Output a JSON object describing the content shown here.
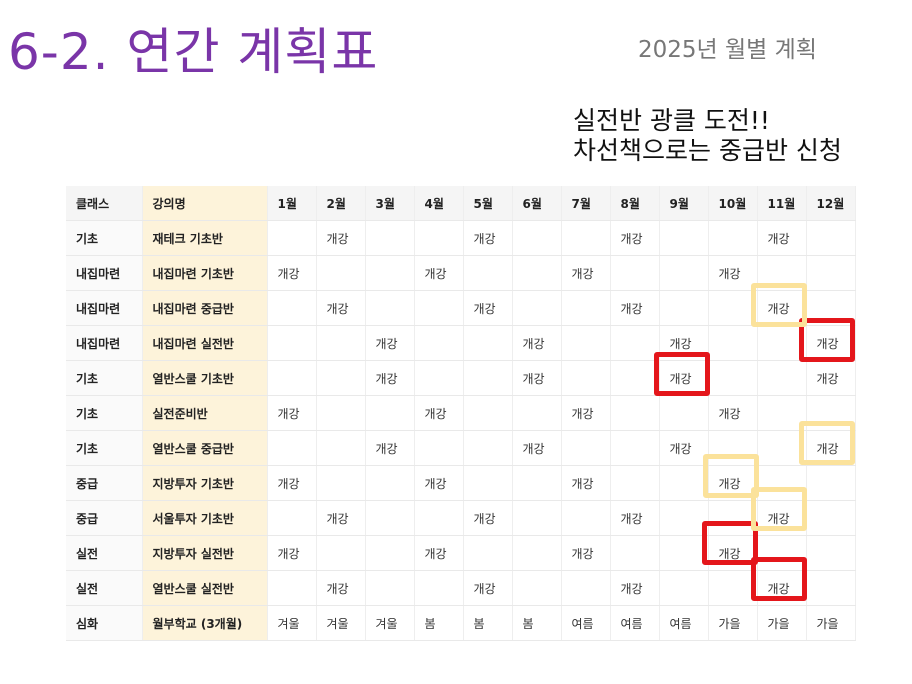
{
  "title": "6-2. 연간 계획표",
  "subtitle": "2025년 월별 계획",
  "note": {
    "line1": "실전반 광클 도전!!",
    "line2": "차선책으로는 중급반 신청"
  },
  "colors": {
    "title": "#7a35a8",
    "highlight_yellow": "#fbe29b",
    "highlight_red": "#e4161b",
    "lecture_bg": "#fdf3da"
  },
  "table": {
    "headers": [
      "클래스",
      "강의명",
      "1월",
      "2월",
      "3월",
      "4월",
      "5월",
      "6월",
      "7월",
      "8월",
      "9월",
      "10월",
      "11월",
      "12월"
    ],
    "rows": [
      [
        "기초",
        "재테크 기초반",
        "",
        "개강",
        "",
        "",
        "개강",
        "",
        "",
        "개강",
        "",
        "",
        "개강",
        ""
      ],
      [
        "내집마련",
        "내집마련 기초반",
        "개강",
        "",
        "",
        "개강",
        "",
        "",
        "개강",
        "",
        "",
        "개강",
        "",
        ""
      ],
      [
        "내집마련",
        "내집마련 중급반",
        "",
        "개강",
        "",
        "",
        "개강",
        "",
        "",
        "개강",
        "",
        "",
        "개강",
        ""
      ],
      [
        "내집마련",
        "내집마련 실전반",
        "",
        "",
        "개강",
        "",
        "",
        "개강",
        "",
        "",
        "개강",
        "",
        "",
        "개강"
      ],
      [
        "기초",
        "열반스쿨 기초반",
        "",
        "",
        "개강",
        "",
        "",
        "개강",
        "",
        "",
        "개강",
        "",
        "",
        "개강"
      ],
      [
        "기초",
        "실전준비반",
        "개강",
        "",
        "",
        "개강",
        "",
        "",
        "개강",
        "",
        "",
        "개강",
        "",
        ""
      ],
      [
        "기초",
        "열반스쿨 중급반",
        "",
        "",
        "개강",
        "",
        "",
        "개강",
        "",
        "",
        "개강",
        "",
        "",
        "개강"
      ],
      [
        "중급",
        "지방투자 기초반",
        "개강",
        "",
        "",
        "개강",
        "",
        "",
        "개강",
        "",
        "",
        "개강",
        "",
        ""
      ],
      [
        "중급",
        "서울투자 기초반",
        "",
        "개강",
        "",
        "",
        "개강",
        "",
        "",
        "개강",
        "",
        "",
        "개강",
        ""
      ],
      [
        "실전",
        "지방투자 실전반",
        "개강",
        "",
        "",
        "개강",
        "",
        "",
        "개강",
        "",
        "",
        "개강",
        "",
        ""
      ],
      [
        "실전",
        "열반스쿨 실전반",
        "",
        "개강",
        "",
        "",
        "개강",
        "",
        "",
        "개강",
        "",
        "",
        "개강",
        ""
      ],
      [
        "심화",
        "월부학교 (3개월)",
        "겨울",
        "겨울",
        "겨울",
        "봄",
        "봄",
        "봄",
        "여름",
        "여름",
        "여름",
        "가을",
        "가을",
        "가을"
      ]
    ]
  }
}
